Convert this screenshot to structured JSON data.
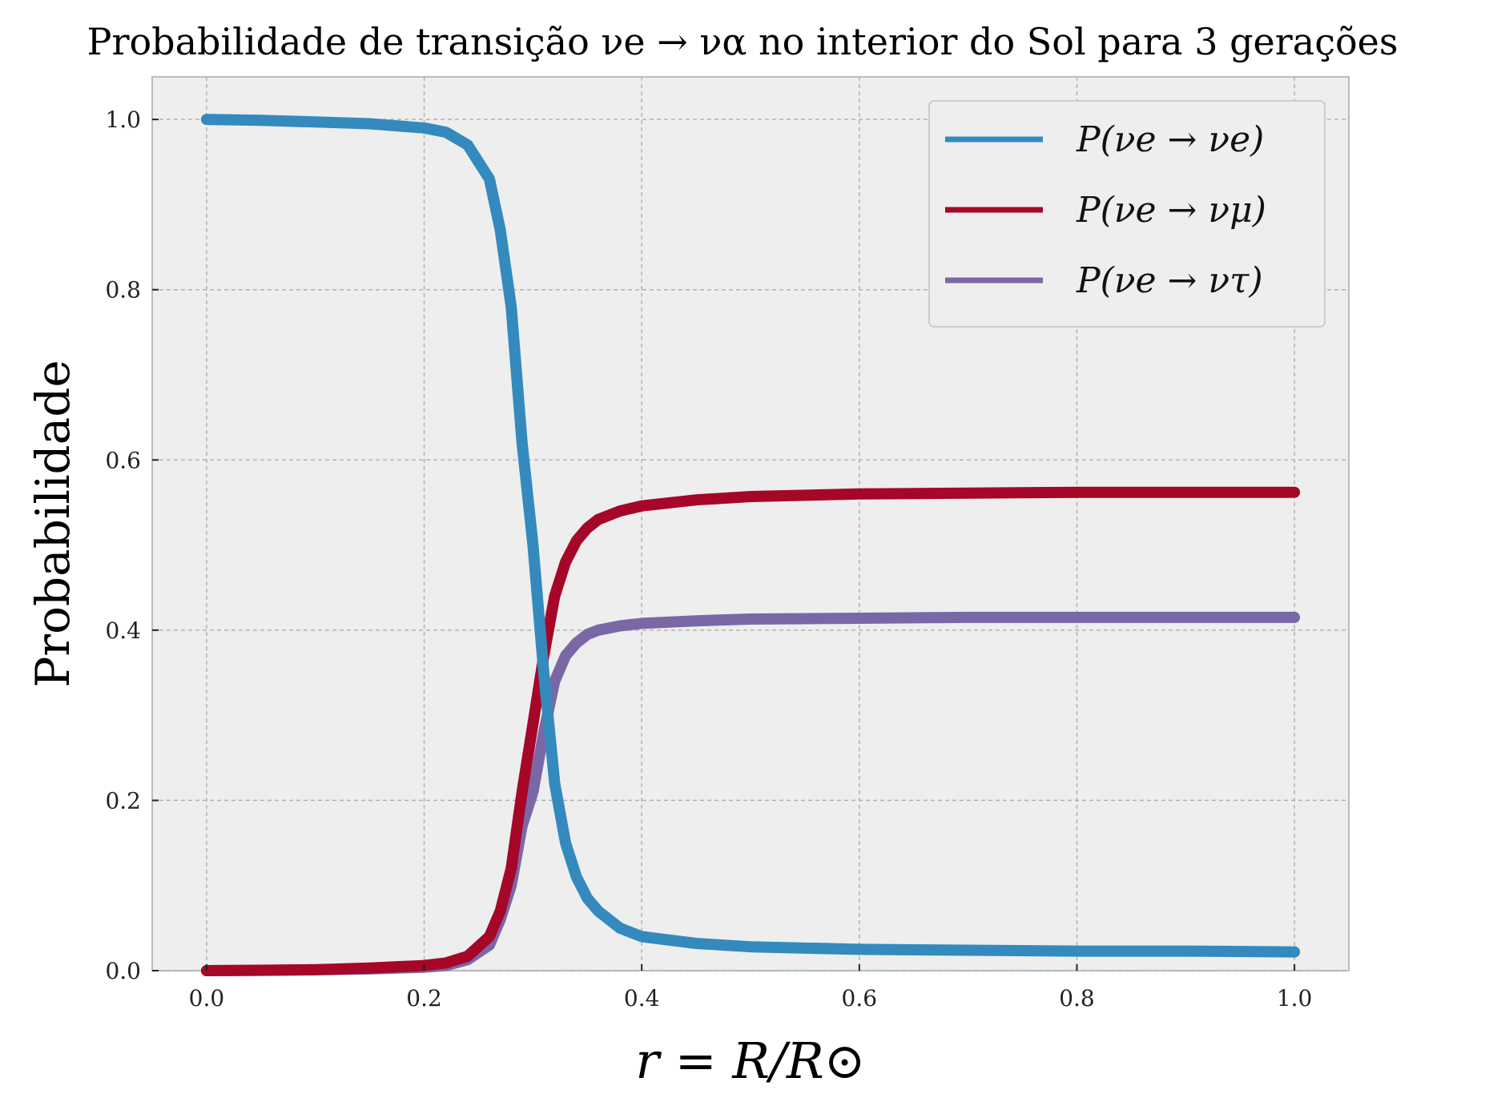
{
  "chart_data": {
    "type": "line",
    "title": "Probabilidade de transição νe → να no interior do Sol para 3 gerações",
    "xlabel": "r = R/R⊙",
    "ylabel": "Probabilidade",
    "xlim": [
      -0.05,
      1.05
    ],
    "ylim": [
      0.0,
      1.05
    ],
    "xticks": [
      0.0,
      0.2,
      0.4,
      0.6,
      0.8,
      1.0
    ],
    "yticks": [
      0.0,
      0.2,
      0.4,
      0.6,
      0.8,
      1.0
    ],
    "xtick_labels": [
      "0.0",
      "0.2",
      "0.4",
      "0.6",
      "0.8",
      "1.0"
    ],
    "ytick_labels": [
      "0.0",
      "0.2",
      "0.4",
      "0.6",
      "0.8",
      "1.0"
    ],
    "grid": true,
    "legend_position": "top-right",
    "x": [
      0.0,
      0.05,
      0.1,
      0.15,
      0.2,
      0.22,
      0.24,
      0.26,
      0.27,
      0.28,
      0.29,
      0.3,
      0.31,
      0.32,
      0.33,
      0.34,
      0.35,
      0.36,
      0.38,
      0.4,
      0.45,
      0.5,
      0.6,
      0.7,
      0.8,
      0.9,
      1.0
    ],
    "series": [
      {
        "name": "P(νe → νe)",
        "color": "#348ABD",
        "values": [
          1.0,
          0.999,
          0.997,
          0.995,
          0.99,
          0.985,
          0.97,
          0.93,
          0.87,
          0.78,
          0.62,
          0.5,
          0.35,
          0.22,
          0.15,
          0.11,
          0.085,
          0.07,
          0.05,
          0.04,
          0.032,
          0.028,
          0.025,
          0.024,
          0.023,
          0.023,
          0.022
        ]
      },
      {
        "name": "P(νe → νμ)",
        "color": "#A60628",
        "values": [
          0.0,
          0.0005,
          0.001,
          0.003,
          0.006,
          0.009,
          0.017,
          0.04,
          0.07,
          0.12,
          0.21,
          0.29,
          0.37,
          0.44,
          0.48,
          0.505,
          0.52,
          0.53,
          0.54,
          0.546,
          0.553,
          0.557,
          0.56,
          0.561,
          0.562,
          0.562,
          0.562
        ]
      },
      {
        "name": "P(νe → ντ)",
        "color": "#7A68A6",
        "values": [
          0.0,
          0.0004,
          0.001,
          0.002,
          0.004,
          0.006,
          0.013,
          0.03,
          0.06,
          0.1,
          0.17,
          0.21,
          0.28,
          0.34,
          0.37,
          0.385,
          0.395,
          0.4,
          0.405,
          0.408,
          0.411,
          0.413,
          0.414,
          0.415,
          0.415,
          0.415,
          0.415
        ]
      }
    ]
  }
}
